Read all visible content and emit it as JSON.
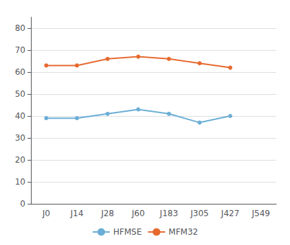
{
  "chart_data": {
    "type": "line",
    "categories": [
      "J0",
      "J14",
      "J28",
      "J60",
      "J183",
      "J305",
      "J427",
      "J549"
    ],
    "series": [
      {
        "name": "HFMSE",
        "color": "#6baed6",
        "values": [
          39,
          39,
          41,
          43,
          41,
          37,
          40,
          null
        ]
      },
      {
        "name": "MFM32",
        "color": "#e6692e",
        "values": [
          63,
          63,
          66,
          67,
          66,
          64,
          62,
          null
        ]
      }
    ],
    "ylim": [
      0,
      85
    ],
    "yticks": [
      0,
      10,
      20,
      30,
      40,
      50,
      60,
      70,
      80
    ],
    "grid": true,
    "legend": "bottom",
    "marker": "circle"
  }
}
